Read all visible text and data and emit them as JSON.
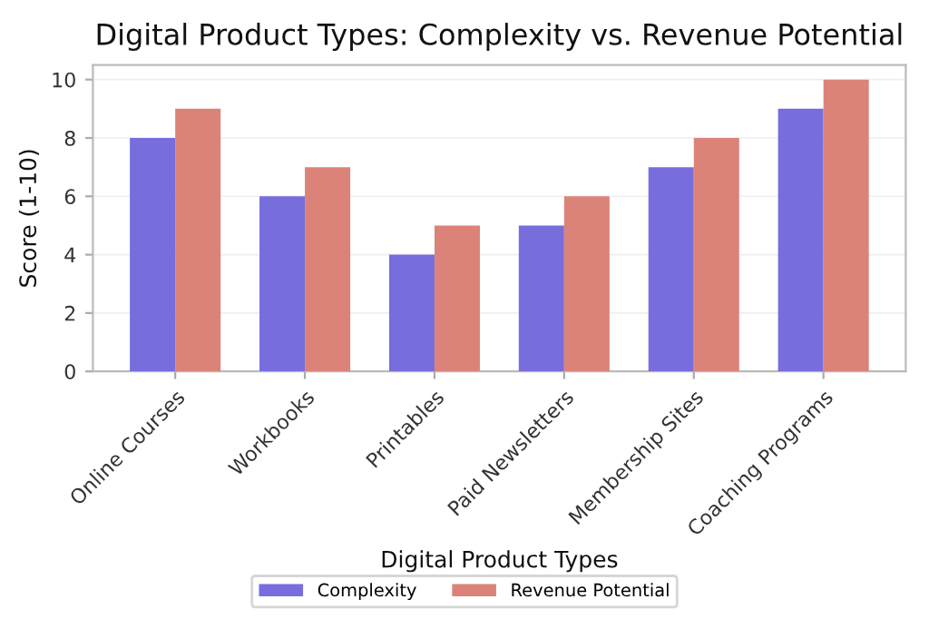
{
  "chart_data": {
    "type": "bar",
    "title": "Digital Product Types: Complexity vs. Revenue Potential",
    "xlabel": "Digital Product Types",
    "ylabel": "Score (1-10)",
    "categories": [
      "Online Courses",
      "Workbooks",
      "Printables",
      "Paid Newsletters",
      "Membership Sites",
      "Coaching Programs"
    ],
    "series": [
      {
        "name": "Complexity",
        "color": "#776ddd",
        "values": [
          8,
          6,
          4,
          5,
          7,
          9
        ]
      },
      {
        "name": "Revenue Potential",
        "color": "#db8379",
        "values": [
          9,
          7,
          5,
          6,
          8,
          10
        ]
      }
    ],
    "ylim": [
      0,
      10.5
    ],
    "yticks": [
      0,
      2,
      4,
      6,
      8,
      10
    ],
    "grid": "y",
    "legend": "bottom"
  }
}
